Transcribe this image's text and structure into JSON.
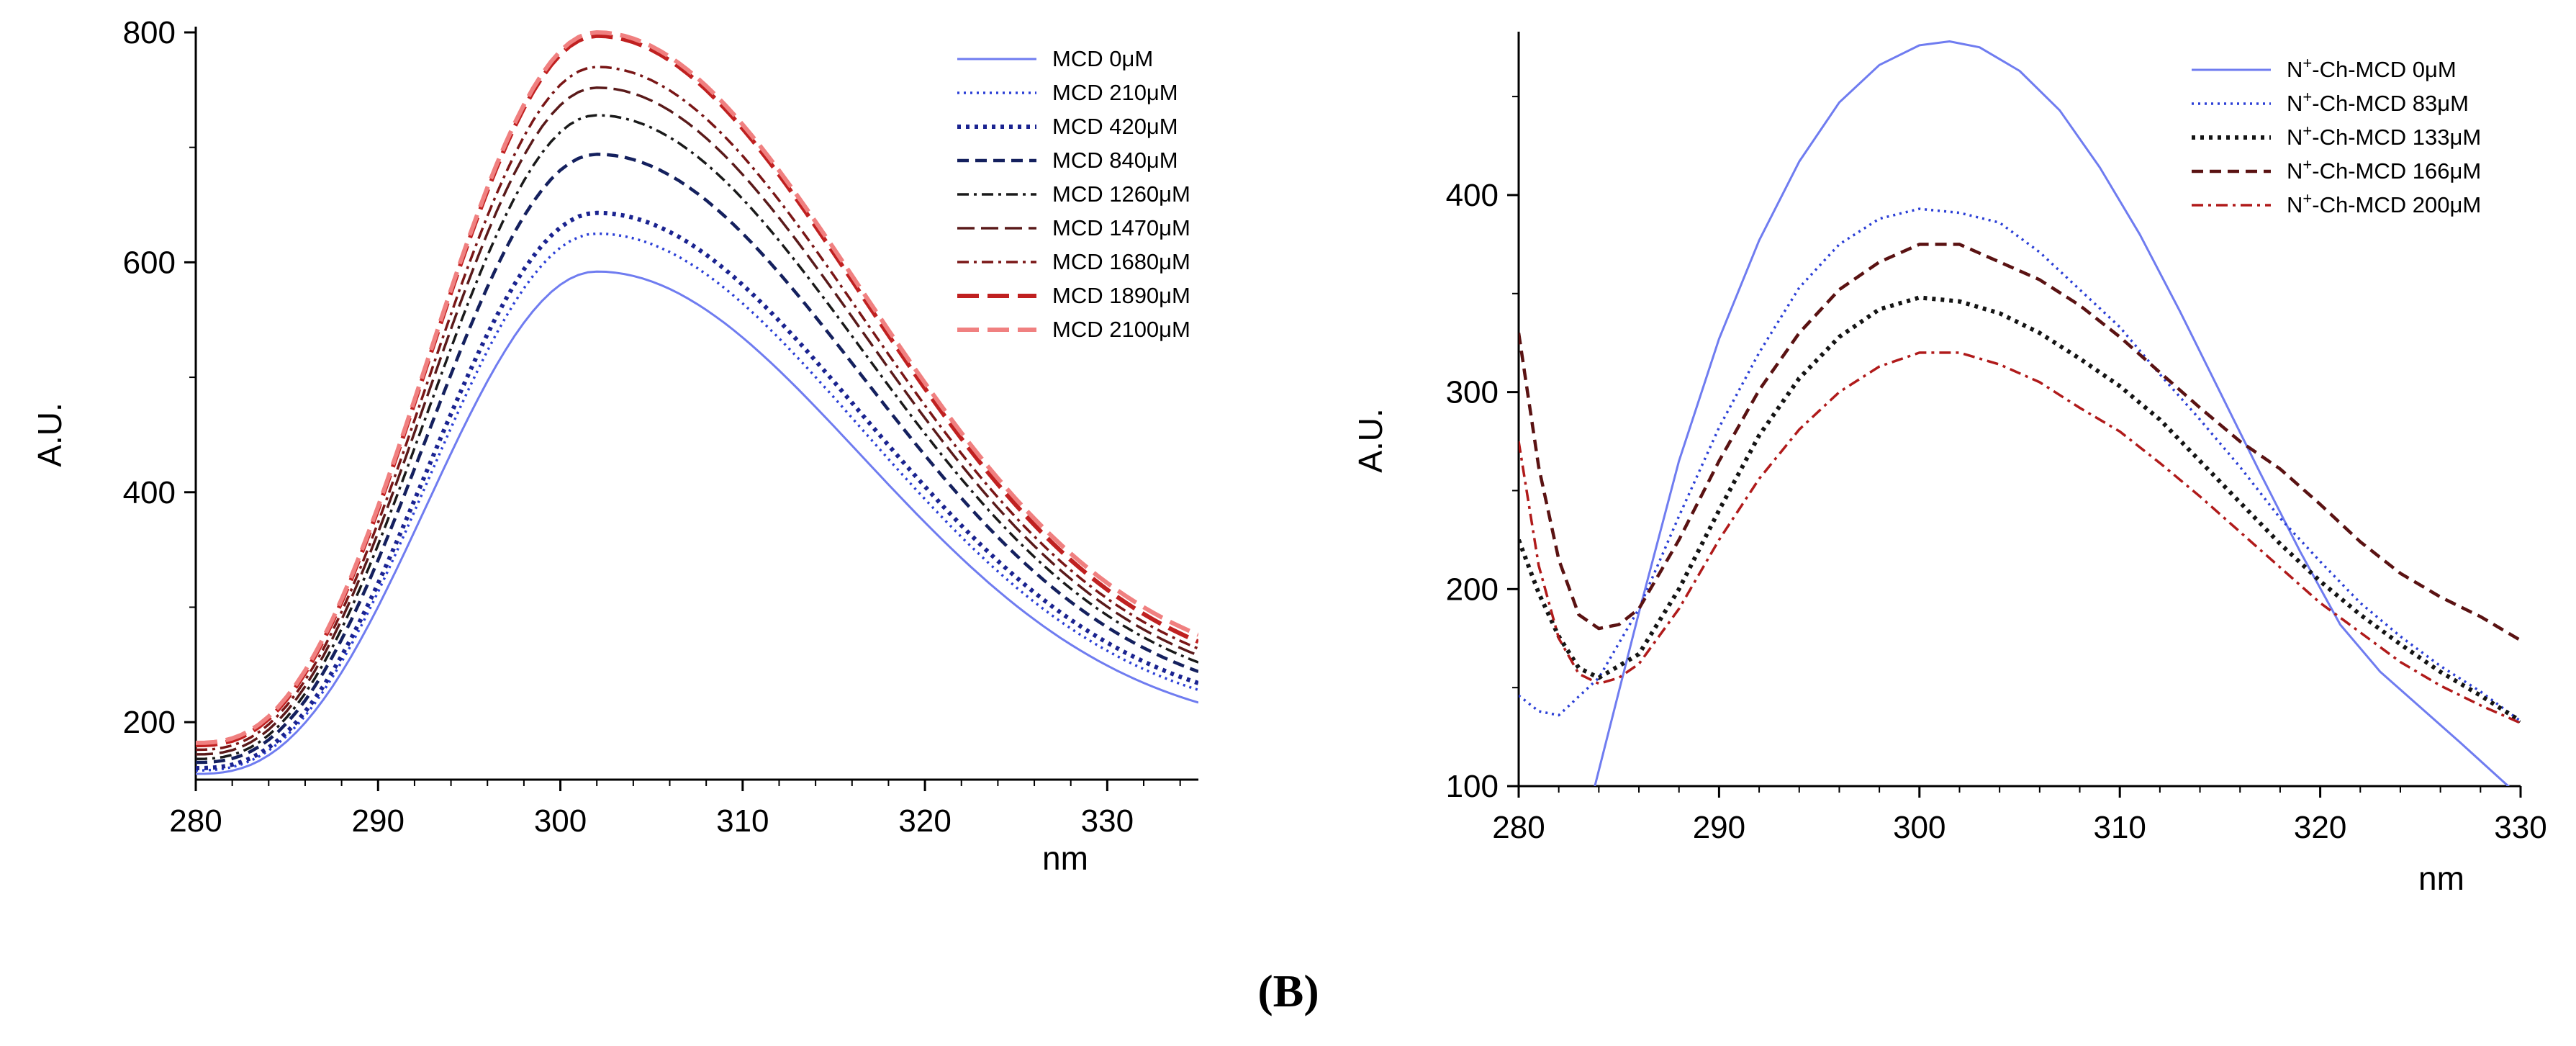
{
  "panel_label": "(B)",
  "chart_data": [
    {
      "type": "line",
      "title": "",
      "xlabel": "nm",
      "ylabel": "A.U.",
      "xlim": [
        280,
        335
      ],
      "ylim": [
        150,
        800
      ],
      "xticks": [
        280,
        290,
        300,
        310,
        320,
        330
      ],
      "yticks": [
        200,
        400,
        600,
        800
      ],
      "legend_position": "top-right",
      "series": [
        {
          "name": "MCD 0μM",
          "color": "#6f7cf0",
          "dash": "solid",
          "peak": 592,
          "base280": 155,
          "end335": 217
        },
        {
          "name": "MCD 210μM",
          "color": "#2b3fd6",
          "dash": "dotted",
          "peak": 625,
          "base280": 158,
          "end335": 228
        },
        {
          "name": "MCD 420μM",
          "color": "#1a2390",
          "dash": "dotted-bold",
          "peak": 643,
          "base280": 160,
          "end335": 234
        },
        {
          "name": "MCD 840μM",
          "color": "#14205e",
          "dash": "dashed",
          "peak": 694,
          "base280": 165,
          "end335": 244
        },
        {
          "name": "MCD 1260μM",
          "color": "#1a1a1a",
          "dash": "dashdot",
          "peak": 728,
          "base280": 168,
          "end335": 252
        },
        {
          "name": "MCD 1470μM",
          "color": "#5a1a1a",
          "dash": "longdash",
          "peak": 752,
          "base280": 172,
          "end335": 258
        },
        {
          "name": "MCD 1680μM",
          "color": "#7a1616",
          "dash": "dashdot",
          "peak": 770,
          "base280": 176,
          "end335": 264
        },
        {
          "name": "MCD 1890μM",
          "color": "#c02020",
          "dash": "longdash-bold",
          "peak": 797,
          "base280": 180,
          "end335": 270
        },
        {
          "name": "MCD 2100μM",
          "color": "#f08080",
          "dash": "longdash-bold",
          "peak": 800,
          "base280": 182,
          "end335": 276
        }
      ]
    },
    {
      "type": "line",
      "title": "",
      "xlabel": "nm",
      "ylabel": "A.U.",
      "xlim": [
        280,
        330
      ],
      "ylim": [
        100,
        480
      ],
      "xticks": [
        280,
        290,
        300,
        310,
        320,
        330
      ],
      "yticks": [
        100,
        200,
        300,
        400
      ],
      "legend_position": "top-right",
      "series": [
        {
          "name": "N+-Ch-MCD 0μM",
          "prefix": "N",
          "superscript": "+",
          "suffix": "-Ch-MCD 0μM",
          "color": "#6f7cf0",
          "dash": "solid",
          "x": [
            283.8,
            286,
            288,
            290,
            292,
            294,
            296,
            298,
            300,
            301.5,
            303,
            305,
            307,
            309,
            311,
            313,
            315,
            317,
            319,
            321,
            323,
            325,
            327,
            329.6
          ],
          "y": [
            100,
            188,
            265,
            327,
            377,
            417,
            447,
            466,
            476,
            478,
            475,
            463,
            443,
            414,
            380,
            341,
            300,
            259,
            219,
            182,
            158,
            140,
            122,
            98
          ]
        },
        {
          "name": "N+-Ch-MCD 83μM",
          "prefix": "N",
          "superscript": "+",
          "suffix": "-Ch-MCD 83μM",
          "color": "#2b3fd6",
          "dash": "dotted",
          "x": [
            280,
            281,
            282,
            284,
            286,
            288,
            290,
            292,
            294,
            296,
            298,
            300,
            302,
            304,
            306,
            308,
            310,
            312,
            314,
            316,
            318,
            320,
            322,
            324,
            326,
            328,
            330
          ],
          "y": [
            146,
            138,
            136,
            155,
            190,
            237,
            282,
            320,
            353,
            375,
            388,
            393,
            391,
            386,
            371,
            352,
            333,
            309,
            286,
            262,
            236,
            214,
            193,
            176,
            161,
            148,
            133
          ]
        },
        {
          "name": "N+-Ch-MCD 133μM",
          "prefix": "N",
          "superscript": "+",
          "suffix": "-Ch-MCD 133μM",
          "color": "#141414",
          "dash": "dotted-bold",
          "x": [
            280,
            281,
            282,
            283,
            284,
            286,
            288,
            290,
            292,
            294,
            296,
            298,
            300,
            302,
            304,
            306,
            308,
            310,
            312,
            314,
            316,
            318,
            320,
            322,
            324,
            326,
            328,
            330
          ],
          "y": [
            225,
            198,
            176,
            160,
            155,
            167,
            200,
            240,
            278,
            307,
            328,
            342,
            348,
            346,
            340,
            330,
            317,
            303,
            286,
            265,
            244,
            223,
            204,
            187,
            172,
            158,
            146,
            133
          ]
        },
        {
          "name": "N+-Ch-MCD 166μM",
          "prefix": "N",
          "superscript": "+",
          "suffix": "-Ch-MCD 166μM",
          "color": "#5a1212",
          "dash": "dashed",
          "x": [
            280,
            281,
            282,
            283,
            284,
            285,
            286,
            288,
            290,
            292,
            294,
            296,
            298,
            300,
            302,
            304,
            306,
            308,
            310,
            312,
            314,
            316,
            318,
            320,
            322,
            324,
            326,
            328,
            330
          ],
          "y": [
            330,
            262,
            215,
            187,
            180,
            182,
            190,
            225,
            265,
            301,
            330,
            352,
            366,
            375,
            375,
            366,
            357,
            344,
            328,
            310,
            292,
            275,
            261,
            243,
            224,
            208,
            196,
            186,
            174
          ]
        },
        {
          "name": "N+-Ch-MCD 200μM",
          "prefix": "N",
          "superscript": "+",
          "suffix": "-Ch-MCD 200μM",
          "color": "#b01a1a",
          "dash": "dashdot",
          "x": [
            280,
            281,
            282,
            283,
            284,
            285,
            286,
            288,
            290,
            292,
            294,
            296,
            298,
            300,
            302,
            304,
            306,
            308,
            310,
            312,
            314,
            316,
            318,
            320,
            322,
            324,
            326,
            328,
            330
          ],
          "y": [
            275,
            212,
            175,
            157,
            152,
            155,
            162,
            190,
            225,
            256,
            281,
            300,
            313,
            320,
            320,
            314,
            305,
            292,
            280,
            264,
            247,
            229,
            211,
            193,
            178,
            163,
            151,
            141,
            132
          ]
        }
      ]
    }
  ]
}
